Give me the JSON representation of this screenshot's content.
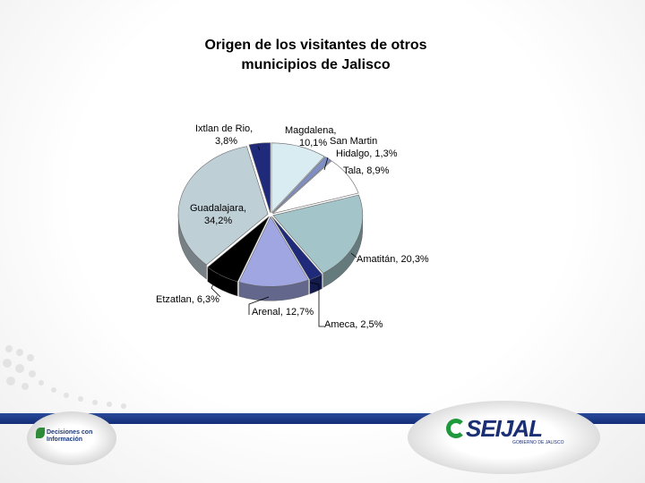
{
  "chart_data": {
    "type": "pie",
    "title": "Origen de los visitantes de otros\nmunicipios de Jalisco",
    "slices": [
      {
        "label": "Magdalena, 10,1%",
        "value": 10.1,
        "color": "#d8ecf2"
      },
      {
        "label": "San Martin Hidalgo, 1,3%",
        "value": 1.3,
        "color": "#7f8fc4"
      },
      {
        "label": "Tala, 8,9%",
        "value": 8.9,
        "color": "#ffffff"
      },
      {
        "label": "Amatitán, 20,3%",
        "value": 20.3,
        "color": "#a3c4c9"
      },
      {
        "label": "Ameca, 2,5%",
        "value": 2.5,
        "color": "#1f2a7a"
      },
      {
        "label": "Arenal, 12,7%",
        "value": 12.7,
        "color": "#a0a6e2"
      },
      {
        "label": "Etzatlan, 6,3%",
        "value": 6.3,
        "color": "#000000"
      },
      {
        "label": "Guadalajara, 34,2%",
        "value": 34.2,
        "color": "#bfcfd6"
      },
      {
        "label": "Ixtlan de Rio, 3,8%",
        "value": 3.8,
        "color": "#1f2a7a"
      }
    ]
  },
  "footer": {
    "left_logo_text": "Decisiones con Información",
    "right_logo_text": "SEIJAL",
    "right_logo_sub": "GOBIERNO DE JALISCO"
  },
  "theme": {
    "accent_blue": "#142e78",
    "accent_green": "#1e9a3c"
  }
}
